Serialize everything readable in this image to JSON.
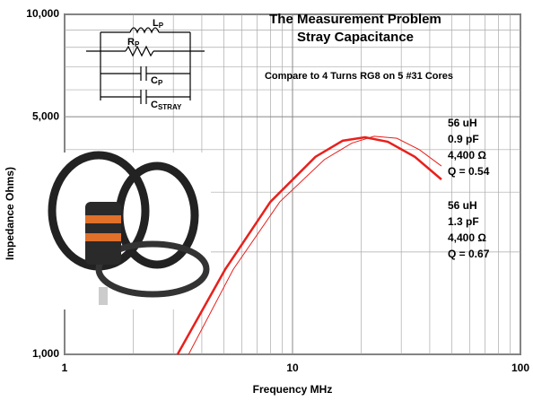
{
  "chart_data": {
    "type": "line",
    "log_x": true,
    "log_y": true,
    "grid": true,
    "title": [
      "The Measurement Problem",
      "Stray Capacitance"
    ],
    "subtitle": "Compare to 4 Turns RG8 on 5 #31 Cores",
    "xlabel": "Frequency  MHz",
    "ylabel": "Impedance  Ohms)",
    "xlim": [
      1,
      100
    ],
    "ylim": [
      1000,
      10000
    ],
    "xticks": [
      1,
      10,
      100
    ],
    "yticks": [
      {
        "value": 1000,
        "label": "1,000"
      },
      {
        "value": 5000,
        "label": "5,000"
      },
      {
        "value": 10000,
        "label": "10,000"
      }
    ],
    "xminor": [
      2,
      3,
      4,
      5,
      6,
      7,
      8,
      9,
      20,
      30,
      40,
      50,
      60,
      70,
      80,
      90
    ],
    "yminor": [
      2000,
      3000,
      4000,
      6000,
      7000,
      8000,
      9000
    ],
    "series": [
      {
        "color": "#e8201c",
        "width": 1,
        "x": [
          3.5,
          5.5,
          8.8,
          13.8,
          18.2,
          22.8,
          28.7,
          36,
          45
        ],
        "values": [
          1000,
          1780,
          2810,
          3740,
          4180,
          4380,
          4320,
          4000,
          3580
        ]
      },
      {
        "color": "#e8201c",
        "width": 2.5,
        "x": [
          3.13,
          5.07,
          8.0,
          12.6,
          16.6,
          20.8,
          26.2,
          34.4,
          45
        ],
        "values": [
          1000,
          1780,
          2810,
          3810,
          4250,
          4350,
          4220,
          3810,
          3270
        ]
      }
    ],
    "annotations": [
      [
        "56 uH",
        "0.9 pF",
        "4,400 Ω",
        "Q = 0.54"
      ],
      [
        "56 uH",
        "1.3 pF",
        "4,400 Ω",
        "Q = 0.67"
      ]
    ],
    "circuit_labels": [
      {
        "main": "L",
        "sub": "P"
      },
      {
        "main": "R",
        "sub": "P"
      },
      {
        "main": "C",
        "sub": "P"
      },
      {
        "main": "C",
        "sub": "STRAY"
      }
    ]
  }
}
